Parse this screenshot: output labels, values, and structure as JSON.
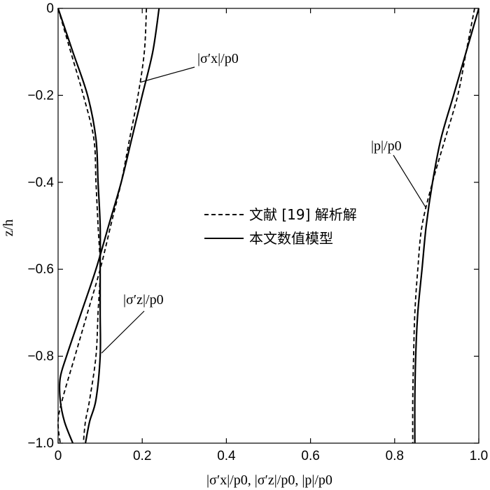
{
  "chart_data": {
    "type": "line",
    "xlabel": "|σ′x|/p0, |σ′z|/p0, |p|/p0",
    "ylabel": "z/h",
    "xlim": [
      0,
      1.0
    ],
    "ylim": [
      -1.0,
      0
    ],
    "xticks": [
      0,
      0.2,
      0.4,
      0.6,
      0.8,
      1.0
    ],
    "xtick_labels": [
      "0",
      "0.2",
      "0.4",
      "0.6",
      "0.8",
      "1.0"
    ],
    "yticks": [
      0,
      -0.2,
      -0.4,
      -0.6,
      -0.8,
      -1.0
    ],
    "ytick_labels": [
      "0",
      "−0.2",
      "−0.4",
      "−0.6",
      "−0.8",
      "−1.0"
    ],
    "grid": false,
    "legend": {
      "placement": "center-right",
      "entries": [
        {
          "label": "文献 [19] 解析解",
          "style": "dashed"
        },
        {
          "label": "本文数值模型",
          "style": "solid"
        }
      ]
    },
    "annotations": [
      {
        "text": "|σ′x|/p0",
        "target_x": 0.195,
        "target_y": -0.17
      },
      {
        "text": "|σ′z|/p0",
        "target_x": 0.1,
        "target_y": -0.78
      },
      {
        "text": "|p|/p0",
        "target_x": 0.88,
        "target_y": -0.45
      }
    ],
    "series": [
      {
        "group": "sigma_x",
        "style": "solid",
        "points": [
          [
            0.24,
            0
          ],
          [
            0.225,
            -0.1
          ],
          [
            0.2,
            -0.2
          ],
          [
            0.175,
            -0.3
          ],
          [
            0.15,
            -0.4
          ],
          [
            0.12,
            -0.5
          ],
          [
            0.09,
            -0.6
          ],
          [
            0.055,
            -0.7
          ],
          [
            0.02,
            -0.8
          ],
          [
            0.005,
            -0.85
          ],
          [
            0.005,
            -0.9
          ],
          [
            0.015,
            -0.95
          ],
          [
            0.035,
            -1.0
          ]
        ]
      },
      {
        "group": "sigma_x",
        "style": "dashed",
        "points": [
          [
            0.21,
            0
          ],
          [
            0.205,
            -0.1
          ],
          [
            0.19,
            -0.2
          ],
          [
            0.17,
            -0.3
          ],
          [
            0.15,
            -0.4
          ],
          [
            0.125,
            -0.5
          ],
          [
            0.1,
            -0.6
          ],
          [
            0.07,
            -0.7
          ],
          [
            0.04,
            -0.8
          ],
          [
            0.01,
            -0.9
          ],
          [
            0.0,
            -0.95
          ],
          [
            0.005,
            -1.0
          ]
        ]
      },
      {
        "group": "sigma_z",
        "style": "solid",
        "points": [
          [
            0.0,
            0
          ],
          [
            0.035,
            -0.1
          ],
          [
            0.07,
            -0.2
          ],
          [
            0.09,
            -0.3
          ],
          [
            0.095,
            -0.4
          ],
          [
            0.1,
            -0.5
          ],
          [
            0.1,
            -0.6
          ],
          [
            0.1,
            -0.7
          ],
          [
            0.1,
            -0.8
          ],
          [
            0.09,
            -0.9
          ],
          [
            0.075,
            -0.95
          ],
          [
            0.065,
            -1.0
          ]
        ]
      },
      {
        "group": "sigma_z",
        "style": "dashed",
        "points": [
          [
            0.0,
            0
          ],
          [
            0.03,
            -0.1
          ],
          [
            0.06,
            -0.2
          ],
          [
            0.085,
            -0.3
          ],
          [
            0.09,
            -0.4
          ],
          [
            0.095,
            -0.5
          ],
          [
            0.1,
            -0.6
          ],
          [
            0.095,
            -0.7
          ],
          [
            0.09,
            -0.8
          ],
          [
            0.075,
            -0.9
          ],
          [
            0.065,
            -0.95
          ],
          [
            0.06,
            -1.0
          ]
        ]
      },
      {
        "group": "p",
        "style": "solid",
        "points": [
          [
            1.0,
            0
          ],
          [
            0.97,
            -0.1
          ],
          [
            0.94,
            -0.2
          ],
          [
            0.91,
            -0.3
          ],
          [
            0.89,
            -0.4
          ],
          [
            0.875,
            -0.5
          ],
          [
            0.865,
            -0.6
          ],
          [
            0.855,
            -0.7
          ],
          [
            0.85,
            -0.8
          ],
          [
            0.848,
            -0.9
          ],
          [
            0.848,
            -1.0
          ]
        ]
      },
      {
        "group": "p",
        "style": "dashed",
        "points": [
          [
            0.99,
            0
          ],
          [
            0.97,
            -0.1
          ],
          [
            0.95,
            -0.2
          ],
          [
            0.92,
            -0.3
          ],
          [
            0.89,
            -0.4
          ],
          [
            0.865,
            -0.5
          ],
          [
            0.855,
            -0.6
          ],
          [
            0.848,
            -0.7
          ],
          [
            0.845,
            -0.8
          ],
          [
            0.843,
            -0.9
          ],
          [
            0.843,
            -1.0
          ]
        ]
      }
    ]
  }
}
